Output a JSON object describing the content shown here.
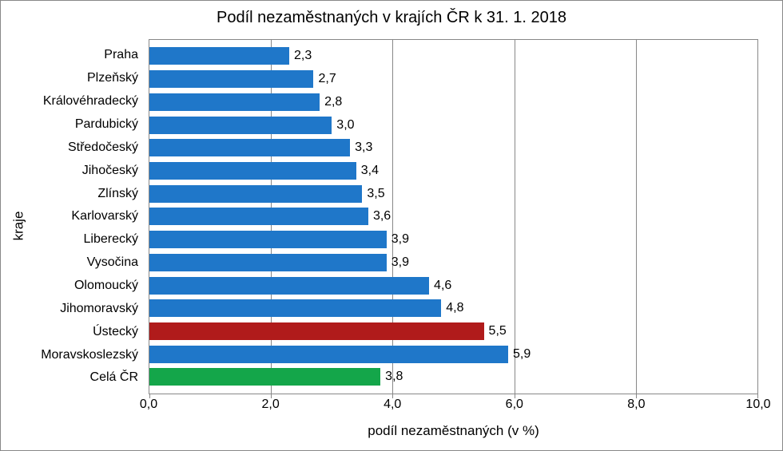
{
  "chart": {
    "type": "bar-horizontal",
    "title": "Podíl nezaměstnaných v krajích ČR k 31. 1. 2018",
    "title_fontsize": 20,
    "x_axis_title": "podíl nezaměstnaných (v %)",
    "y_axis_title": "kraje",
    "label_fontsize": 17,
    "tick_fontsize": 16,
    "background_color": "#ffffff",
    "border_color": "#888888",
    "grid_color": "#888888",
    "xlim": [
      0,
      10
    ],
    "xtick_step": 2,
    "xtick_labels": [
      "0,0",
      "2,0",
      "4,0",
      "6,0",
      "8,0",
      "10,0"
    ],
    "default_bar_color": "#1f77c9",
    "bars": [
      {
        "label": "Praha",
        "value": 2.3,
        "value_label": "2,3",
        "color": "#1f77c9"
      },
      {
        "label": "Plzeňský",
        "value": 2.7,
        "value_label": "2,7",
        "color": "#1f77c9"
      },
      {
        "label": "Královéhradecký",
        "value": 2.8,
        "value_label": "2,8",
        "color": "#1f77c9"
      },
      {
        "label": "Pardubický",
        "value": 3.0,
        "value_label": "3,0",
        "color": "#1f77c9"
      },
      {
        "label": "Středočeský",
        "value": 3.3,
        "value_label": "3,3",
        "color": "#1f77c9"
      },
      {
        "label": "Jihočeský",
        "value": 3.4,
        "value_label": "3,4",
        "color": "#1f77c9"
      },
      {
        "label": "Zlínský",
        "value": 3.5,
        "value_label": "3,5",
        "color": "#1f77c9"
      },
      {
        "label": "Karlovarský",
        "value": 3.6,
        "value_label": "3,6",
        "color": "#1f77c9"
      },
      {
        "label": "Liberecký",
        "value": 3.9,
        "value_label": "3,9",
        "color": "#1f77c9"
      },
      {
        "label": "Vysočina",
        "value": 3.9,
        "value_label": "3,9",
        "color": "#1f77c9"
      },
      {
        "label": "Olomoucký",
        "value": 4.6,
        "value_label": "4,6",
        "color": "#1f77c9"
      },
      {
        "label": "Jihomoravský",
        "value": 4.8,
        "value_label": "4,8",
        "color": "#1f77c9"
      },
      {
        "label": "Ústecký",
        "value": 5.5,
        "value_label": "5,5",
        "color": "#b01b1b"
      },
      {
        "label": "Moravskoslezský",
        "value": 5.9,
        "value_label": "5,9",
        "color": "#1f77c9"
      },
      {
        "label": "Celá ČR",
        "value": 3.8,
        "value_label": "3,8",
        "color": "#14a64a"
      }
    ]
  }
}
